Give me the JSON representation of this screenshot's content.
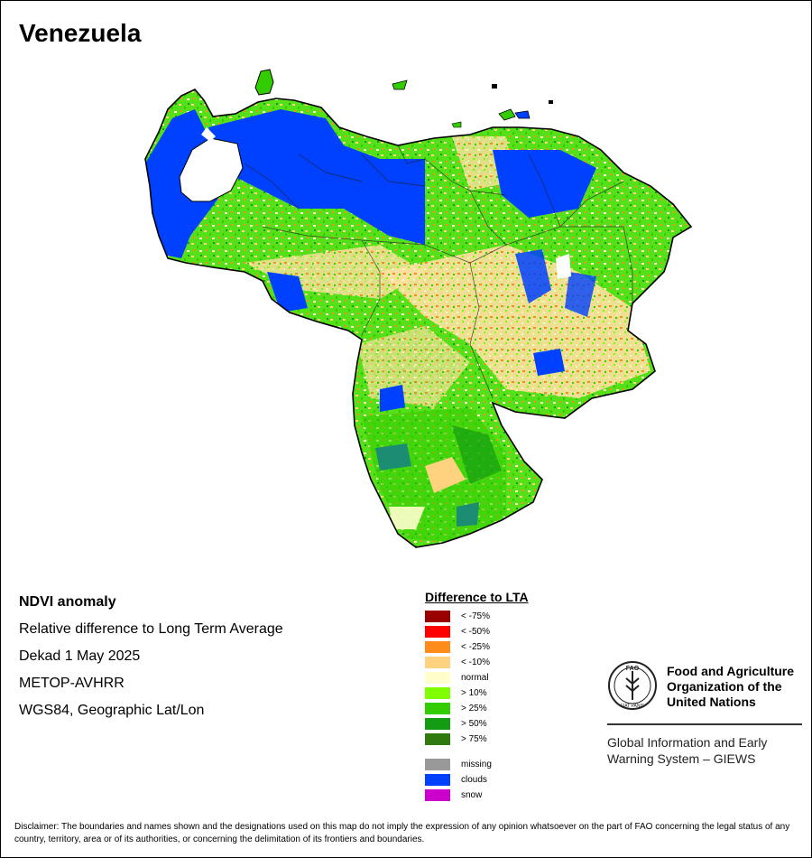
{
  "title": "Venezuela",
  "info": {
    "heading": "NDVI anomaly",
    "line1": "Relative difference to Long Term Average",
    "line2": "Dekad 1 May 2025",
    "line3": "METOP-AVHRR",
    "line4": "WGS84, Geographic Lat/Lon"
  },
  "legend": {
    "title": "Difference to LTA",
    "items": [
      {
        "label": "< -75%",
        "color": "#990000"
      },
      {
        "label": "< -50%",
        "color": "#ff0000"
      },
      {
        "label": "< -25%",
        "color": "#ff8c1a"
      },
      {
        "label": "< -10%",
        "color": "#ffd27f"
      },
      {
        "label": "normal",
        "color": "#ffffcc"
      },
      {
        "label": "> 10%",
        "color": "#80ff00"
      },
      {
        "label": "> 25%",
        "color": "#33cc00"
      },
      {
        "label": "> 50%",
        "color": "#139b13"
      },
      {
        "label": "> 75%",
        "color": "#2e7a0f"
      }
    ],
    "extra": [
      {
        "label": "missing",
        "color": "#999999"
      },
      {
        "label": "clouds",
        "color": "#0040ff"
      },
      {
        "label": "snow",
        "color": "#cc00cc"
      }
    ]
  },
  "logo": {
    "org_line1": "Food and Agriculture",
    "org_line2": "Organization of the",
    "org_line3": "United Nations",
    "acronym": "FAO",
    "motto": "FIAT PANIS",
    "system_line1": "Global Information and Early",
    "system_line2": "Warning System – GIEWS"
  },
  "disclaimer": "Disclaimer: The boundaries and names shown and the designations used on this map do not imply the expression of any opinion whatsoever on the part of FAO concerning the legal status of any country, territory, area or of its authorities, or concerning the delimitation of its frontiers and boundaries."
}
